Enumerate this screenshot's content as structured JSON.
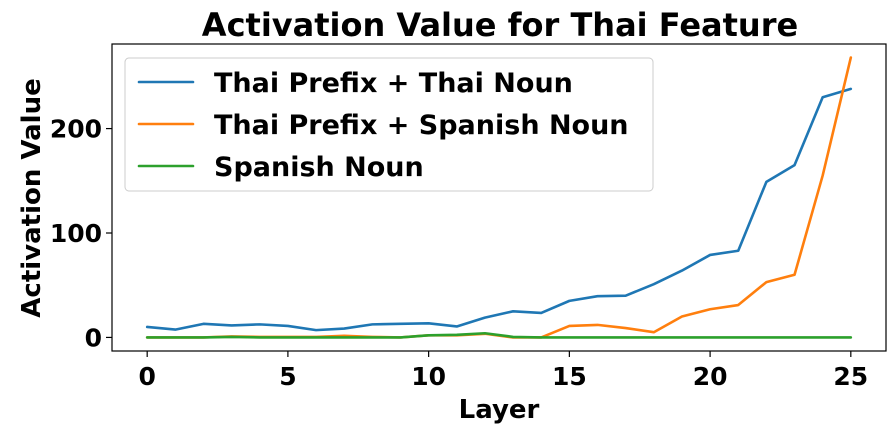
{
  "chart_data": {
    "type": "line",
    "title": "Activation Value for Thai Feature",
    "xlabel": "Layer",
    "ylabel": "Activation Value",
    "xlim": [
      -1.25,
      26.25
    ],
    "ylim": [
      -13,
      281
    ],
    "xticks": [
      0,
      5,
      10,
      15,
      20,
      25
    ],
    "yticks": [
      0,
      100,
      200
    ],
    "grid": false,
    "legend_position": "upper-left",
    "x": [
      0,
      1,
      2,
      3,
      4,
      5,
      6,
      7,
      8,
      9,
      10,
      11,
      12,
      13,
      14,
      15,
      16,
      17,
      18,
      19,
      20,
      21,
      22,
      23,
      24,
      25
    ],
    "series": [
      {
        "name": "Thai Prefix + Thai Noun",
        "color": "#1f77b4",
        "values": [
          10,
          7.5,
          13,
          11.5,
          12.5,
          11,
          7,
          8.5,
          12.5,
          13,
          13.5,
          10.5,
          19,
          25,
          23.5,
          35,
          39.5,
          40,
          51,
          64,
          79,
          83,
          149,
          165,
          230,
          238
        ]
      },
      {
        "name": "Thai Prefix + Spanish Noun",
        "color": "#ff7f0e",
        "values": [
          0,
          0,
          0,
          1,
          0.5,
          0.5,
          0.5,
          1.5,
          0.5,
          0,
          2,
          2,
          3.5,
          0,
          0,
          11,
          12,
          9,
          5,
          20,
          27,
          31,
          53,
          60,
          155,
          268
        ]
      },
      {
        "name": "Spanish Noun",
        "color": "#2ca02c",
        "values": [
          0,
          0,
          0,
          0.5,
          0,
          0,
          0,
          0,
          0,
          0,
          2,
          2.5,
          4,
          0.5,
          0,
          0,
          0,
          0,
          0,
          0,
          0,
          0,
          0,
          0,
          0,
          0
        ]
      }
    ]
  }
}
